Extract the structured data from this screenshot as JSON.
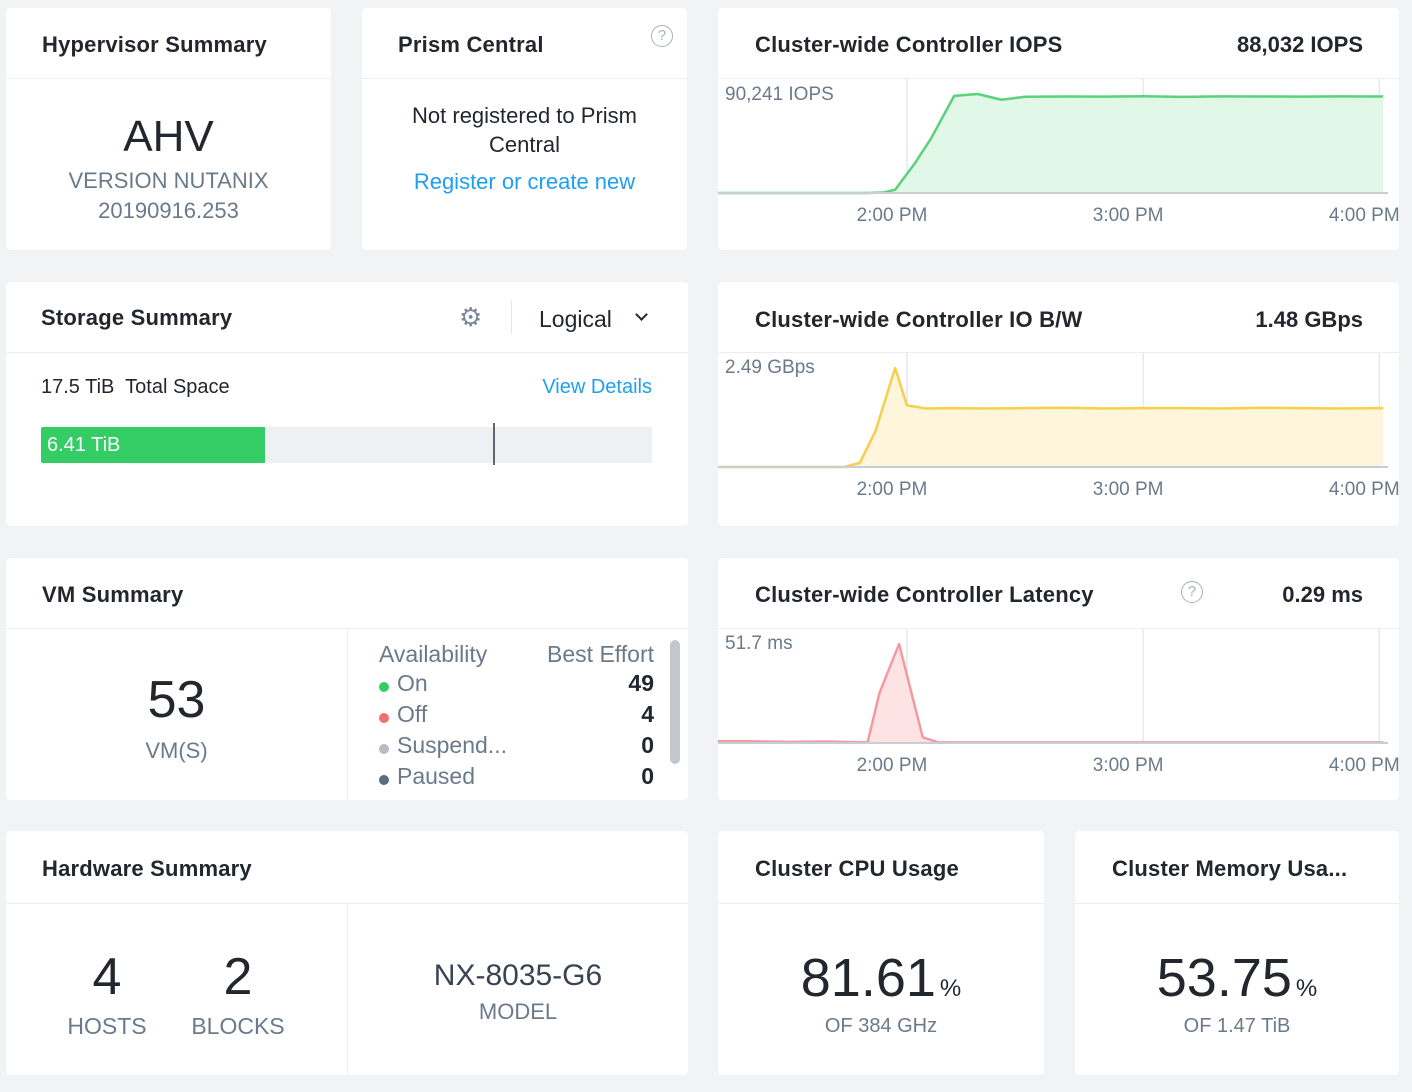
{
  "hypervisor": {
    "title": "Hypervisor Summary",
    "name": "AHV",
    "version_line1": "VERSION NUTANIX",
    "version_line2": "20190916.253"
  },
  "prism": {
    "title": "Prism Central",
    "help_icon": "question-circle-icon",
    "message": "Not registered to Prism Central",
    "link": "Register or create new"
  },
  "storage": {
    "title": "Storage Summary",
    "settings_icon": "gear-icon",
    "view_mode": "Logical",
    "dropdown_icon": "chevron-down-icon",
    "total_value": "17.5 TiB",
    "total_label": "Total Space",
    "view_details": "View Details",
    "used_label": "6.41 TiB",
    "used_fraction": 0.366,
    "threshold_fraction": 0.74,
    "bar_color": "#34cc64"
  },
  "vm": {
    "title": "VM Summary",
    "count": "53",
    "count_label": "VM(S)",
    "col1": "Availability",
    "col2": "Best Effort",
    "rows": [
      {
        "label": "On",
        "value": "49",
        "color": "#34cc64"
      },
      {
        "label": "Off",
        "value": "4",
        "color": "#f26f6f"
      },
      {
        "label": "Suspend...",
        "value": "0",
        "color": "#b4bcc6"
      },
      {
        "label": "Paused",
        "value": "0",
        "color": "#5d6b7a"
      }
    ]
  },
  "hardware": {
    "title": "Hardware Summary",
    "hosts": "4",
    "hosts_label": "HOSTS",
    "blocks": "2",
    "blocks_label": "BLOCKS",
    "model": "NX-8035-G6",
    "model_label": "MODEL"
  },
  "iops": {
    "title": "Cluster-wide Controller IOPS",
    "current": "88,032 IOPS",
    "max_label": "90,241 IOPS",
    "chart_data": {
      "type": "area",
      "x_ticks": [
        "2:00 PM",
        "3:00 PM",
        "4:00 PM"
      ],
      "tick_minutes": [
        120,
        180,
        240
      ],
      "x": [
        72,
        80,
        90,
        100,
        110,
        114,
        117,
        122,
        126,
        132,
        138,
        144,
        150,
        160,
        170,
        180,
        190,
        200,
        210,
        220,
        230,
        240,
        241
      ],
      "y": [
        0,
        0,
        0,
        0,
        0,
        400,
        3000,
        27000,
        49000,
        88500,
        90241,
        85000,
        87700,
        88000,
        87900,
        88200,
        87600,
        88100,
        88000,
        87800,
        88100,
        88000,
        88032
      ],
      "ymax": 90241,
      "color": "#59d17d",
      "fill": "#e1f7e7"
    }
  },
  "bw": {
    "title": "Cluster-wide Controller IO B/W",
    "current": "1.48 GBps",
    "max_label": "2.49 GBps",
    "chart_data": {
      "type": "area",
      "x_ticks": [
        "2:00 PM",
        "3:00 PM",
        "4:00 PM"
      ],
      "tick_minutes": [
        120,
        180,
        240
      ],
      "x": [
        72,
        80,
        90,
        100,
        104,
        108,
        112,
        117,
        120,
        125,
        132,
        140,
        150,
        160,
        170,
        180,
        190,
        200,
        210,
        220,
        230,
        240,
        241
      ],
      "y": [
        0,
        0,
        0,
        0,
        0,
        0.1,
        0.9,
        2.49,
        1.55,
        1.47,
        1.48,
        1.47,
        1.48,
        1.49,
        1.47,
        1.48,
        1.48,
        1.47,
        1.49,
        1.48,
        1.47,
        1.48,
        1.48
      ],
      "ymax": 2.49,
      "color": "#f7cf4c",
      "fill": "#fdf5dc"
    }
  },
  "latency": {
    "title": "Cluster-wide Controller Latency",
    "help_icon": "question-circle-icon",
    "current": "0.29 ms",
    "max_label": "51.7 ms",
    "chart_data": {
      "type": "area",
      "x_ticks": [
        "2:00 PM",
        "3:00 PM",
        "4:00 PM"
      ],
      "tick_minutes": [
        120,
        180,
        240
      ],
      "x": [
        72,
        80,
        90,
        100,
        105,
        110,
        113,
        118,
        124,
        128,
        132,
        140,
        150,
        160,
        170,
        180,
        190,
        200,
        210,
        220,
        230,
        240,
        241
      ],
      "y": [
        0.9,
        0.9,
        0.6,
        0.8,
        0.5,
        0.3,
        26,
        51.7,
        3,
        0.3,
        0.3,
        0.3,
        0.3,
        0.3,
        0.3,
        0.3,
        0.3,
        0.3,
        0.3,
        0.3,
        0.3,
        0.3,
        0.29
      ],
      "ymax": 51.7,
      "color": "#f39aa0",
      "fill": "#fde3e4"
    }
  },
  "cpu": {
    "title": "Cluster CPU Usage",
    "value": "81.61",
    "unit": "%",
    "sub": "OF 384 GHz"
  },
  "memory": {
    "title": "Cluster Memory Usa...",
    "value": "53.75",
    "unit": "%",
    "sub": "OF 1.47 TiB"
  }
}
